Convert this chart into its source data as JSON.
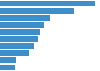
{
  "values": [
    47.3,
    37.0,
    24.8,
    21.9,
    20.0,
    19.0,
    17.0,
    14.5,
    8.0,
    7.5
  ],
  "bar_color": "#3d8fcc",
  "background_color": "#ffffff",
  "grid_color": "#d0d0d0",
  "xlim": [
    0,
    50
  ],
  "bar_height": 0.82,
  "figsize": [
    1.0,
    0.71
  ],
  "dpi": 100
}
